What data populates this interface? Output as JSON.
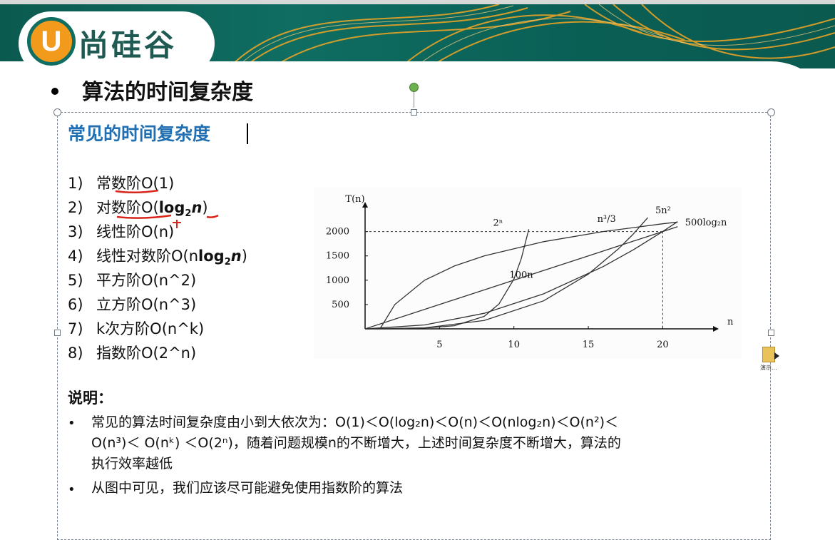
{
  "header": {
    "logo_letter": "U",
    "logo_text": "尚硅谷",
    "brand_color": "#0f6d61",
    "accent_color": "#f29a1b"
  },
  "slide": {
    "title": "算法的时间复杂度",
    "subtitle": "常见的时间复杂度",
    "list": [
      {
        "num": "1)",
        "label": "常数阶O(1)"
      },
      {
        "num": "2)",
        "label_pre": "对数阶O(",
        "bold_main": "log",
        "bold_sub": "2",
        "bold_end": "n",
        "label_post": ")"
      },
      {
        "num": "3)",
        "label": "线性阶O(n)"
      },
      {
        "num": "4)",
        "label_pre": "线性对数阶O(n",
        "bold_main": "log",
        "bold_sub": "2",
        "bold_end": "n",
        "label_post": ")"
      },
      {
        "num": "5)",
        "label": "平方阶O(n^2)"
      },
      {
        "num": "6)",
        "label": "立方阶O(n^3)"
      },
      {
        "num": "7)",
        "label": "k次方阶O(n^k)"
      },
      {
        "num": "8)",
        "label": "指数阶O(2^n)"
      }
    ],
    "notes_heading": "说明：",
    "note1_line1": "常见的算法时间复杂度由小到大依次为：O(1)＜O(log₂n)＜O(n)＜O(nlog₂n)＜O(n²)＜",
    "note1_line2": "O(n³)＜ O(nᵏ) ＜O(2ⁿ)，随着问题规模n的不断增大，上述时间复杂度不断增大，算法的",
    "note1_line3": "执行效率越低",
    "note2": "从图中可见，我们应该尽可能避免使用指数阶的算法",
    "file_label": "演示..."
  },
  "chart_data": {
    "type": "line",
    "xlabel": "n",
    "ylabel": "T(n)",
    "x_ticks": [
      "5",
      "10",
      "15",
      "20"
    ],
    "y_ticks": [
      "500",
      "1000",
      "1500",
      "2000"
    ],
    "xlim": [
      0,
      23
    ],
    "ylim": [
      0,
      2200
    ],
    "series": [
      {
        "name": "2ⁿ",
        "x": [
          0,
          2,
          4,
          6,
          8,
          9,
          10,
          10.5,
          11
        ],
        "y": [
          0,
          4,
          16,
          64,
          256,
          512,
          1024,
          1448,
          2048
        ]
      },
      {
        "name": "n³/3",
        "x": [
          0,
          4,
          8,
          12,
          15,
          17,
          18,
          19
        ],
        "y": [
          0,
          21,
          171,
          576,
          1125,
          1638,
          1944,
          2286
        ]
      },
      {
        "name": "5n²",
        "x": [
          0,
          4,
          8,
          12,
          16,
          18,
          20,
          21
        ],
        "y": [
          0,
          80,
          320,
          720,
          1280,
          1620,
          2000,
          2205
        ]
      },
      {
        "name": "100n",
        "x": [
          0,
          5,
          10,
          15,
          20,
          21
        ],
        "y": [
          0,
          500,
          1000,
          1500,
          2000,
          2100
        ]
      },
      {
        "name": "500log₂n",
        "x": [
          1,
          2,
          4,
          6,
          8,
          12,
          16,
          20,
          21
        ],
        "y": [
          0,
          500,
          1000,
          1292,
          1500,
          1792,
          2000,
          2161,
          2196
        ]
      }
    ],
    "series_labels": [
      "2ⁿ",
      "n³/3",
      "5n²",
      "100n",
      "500log₂n"
    ],
    "guide_x": 20,
    "guide_y": 2000,
    "grid": false
  }
}
